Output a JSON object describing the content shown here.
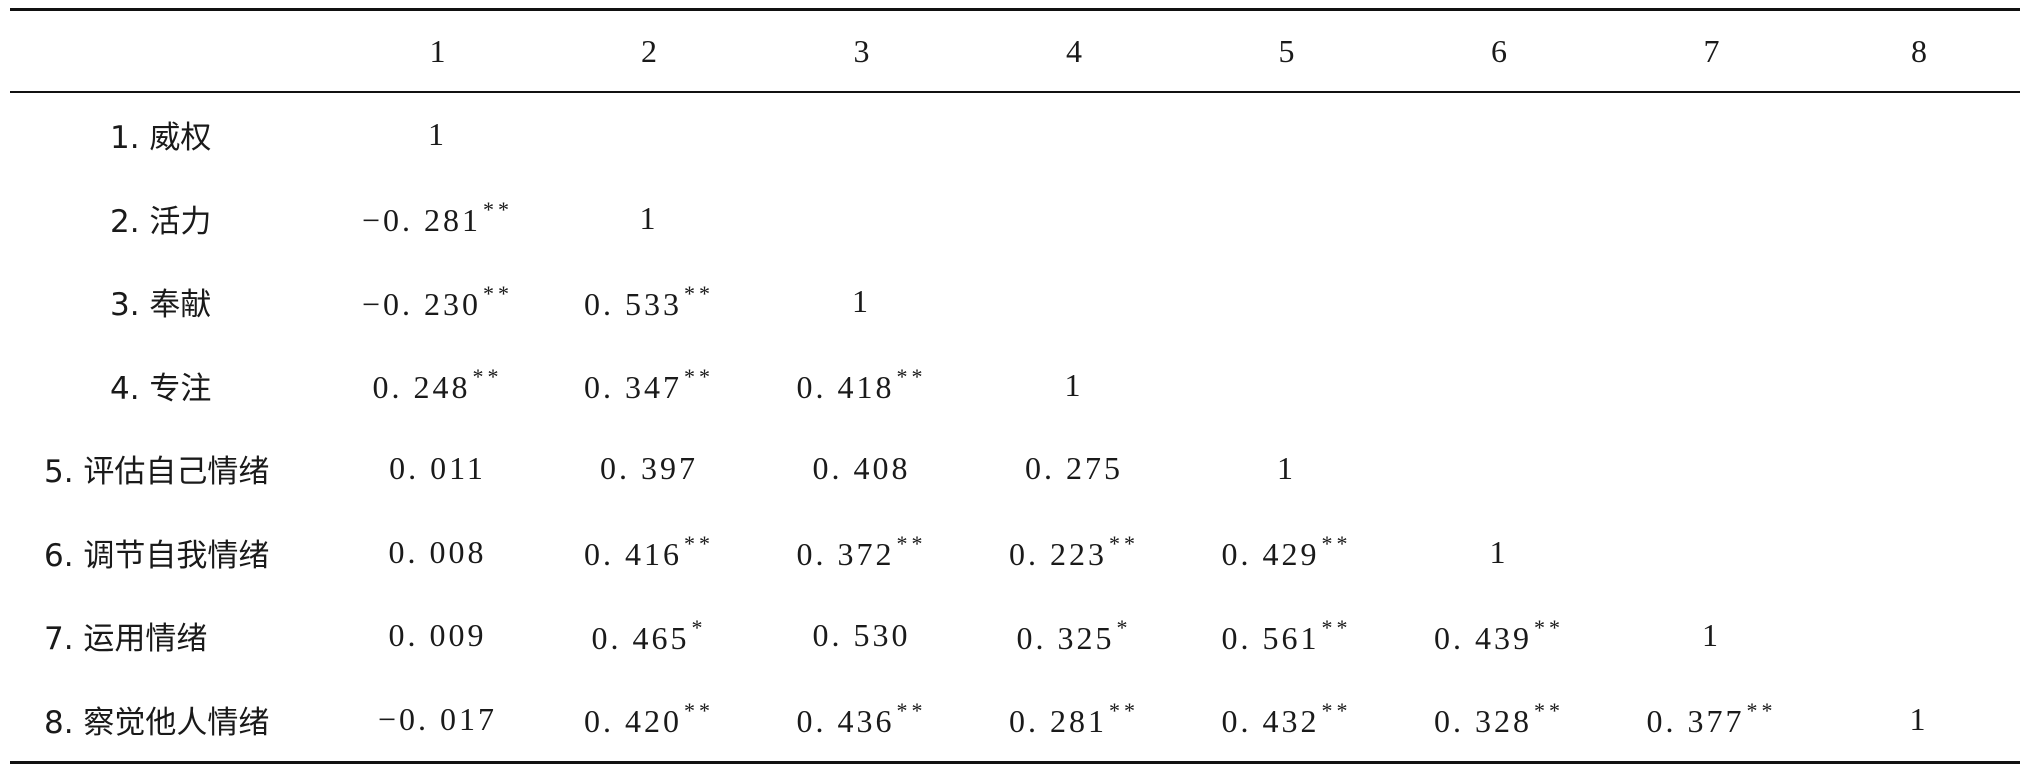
{
  "table": {
    "columns": [
      "",
      "1",
      "2",
      "3",
      "4",
      "5",
      "6",
      "7",
      "8"
    ],
    "rows": [
      {
        "label": "1. 威权",
        "cells": [
          {
            "v": "1",
            "s": ""
          },
          {
            "v": "",
            "s": ""
          },
          {
            "v": "",
            "s": ""
          },
          {
            "v": "",
            "s": ""
          },
          {
            "v": "",
            "s": ""
          },
          {
            "v": "",
            "s": ""
          },
          {
            "v": "",
            "s": ""
          },
          {
            "v": "",
            "s": ""
          }
        ]
      },
      {
        "label": "2. 活力",
        "cells": [
          {
            "v": "−0. 281",
            "s": "**"
          },
          {
            "v": "1",
            "s": ""
          },
          {
            "v": "",
            "s": ""
          },
          {
            "v": "",
            "s": ""
          },
          {
            "v": "",
            "s": ""
          },
          {
            "v": "",
            "s": ""
          },
          {
            "v": "",
            "s": ""
          },
          {
            "v": "",
            "s": ""
          }
        ]
      },
      {
        "label": "3. 奉献",
        "cells": [
          {
            "v": "−0. 230",
            "s": "**"
          },
          {
            "v": "0. 533",
            "s": "**"
          },
          {
            "v": "1",
            "s": ""
          },
          {
            "v": "",
            "s": ""
          },
          {
            "v": "",
            "s": ""
          },
          {
            "v": "",
            "s": ""
          },
          {
            "v": "",
            "s": ""
          },
          {
            "v": "",
            "s": ""
          }
        ]
      },
      {
        "label": "4. 专注",
        "cells": [
          {
            "v": "0. 248",
            "s": "**"
          },
          {
            "v": "0. 347",
            "s": "**"
          },
          {
            "v": "0. 418",
            "s": "**"
          },
          {
            "v": "1",
            "s": ""
          },
          {
            "v": "",
            "s": ""
          },
          {
            "v": "",
            "s": ""
          },
          {
            "v": "",
            "s": ""
          },
          {
            "v": "",
            "s": ""
          }
        ]
      },
      {
        "label": "5. 评估自己情绪",
        "cells": [
          {
            "v": "0. 011",
            "s": ""
          },
          {
            "v": "0. 397",
            "s": ""
          },
          {
            "v": "0. 408",
            "s": ""
          },
          {
            "v": "0. 275",
            "s": ""
          },
          {
            "v": "1",
            "s": ""
          },
          {
            "v": "",
            "s": ""
          },
          {
            "v": "",
            "s": ""
          },
          {
            "v": "",
            "s": ""
          }
        ]
      },
      {
        "label": "6. 调节自我情绪",
        "cells": [
          {
            "v": "0. 008",
            "s": ""
          },
          {
            "v": "0. 416",
            "s": "**"
          },
          {
            "v": "0. 372",
            "s": "**"
          },
          {
            "v": "0. 223",
            "s": "**"
          },
          {
            "v": "0. 429",
            "s": "**"
          },
          {
            "v": "1",
            "s": ""
          },
          {
            "v": "",
            "s": ""
          },
          {
            "v": "",
            "s": ""
          }
        ]
      },
      {
        "label": "7. 运用情绪",
        "cells": [
          {
            "v": "0. 009",
            "s": ""
          },
          {
            "v": "0. 465",
            "s": "*"
          },
          {
            "v": "0. 530",
            "s": ""
          },
          {
            "v": "0. 325",
            "s": "*"
          },
          {
            "v": "0. 561",
            "s": "**"
          },
          {
            "v": "0. 439",
            "s": "**"
          },
          {
            "v": "1",
            "s": ""
          },
          {
            "v": "",
            "s": ""
          }
        ]
      },
      {
        "label": "8. 察觉他人情绪",
        "cells": [
          {
            "v": "−0. 017",
            "s": ""
          },
          {
            "v": "0. 420",
            "s": "**"
          },
          {
            "v": "0. 436",
            "s": "**"
          },
          {
            "v": "0. 281",
            "s": "**"
          },
          {
            "v": "0. 432",
            "s": "**"
          },
          {
            "v": "0. 328",
            "s": "**"
          },
          {
            "v": "0. 377",
            "s": "**"
          },
          {
            "v": "1",
            "s": ""
          }
        ]
      }
    ]
  }
}
